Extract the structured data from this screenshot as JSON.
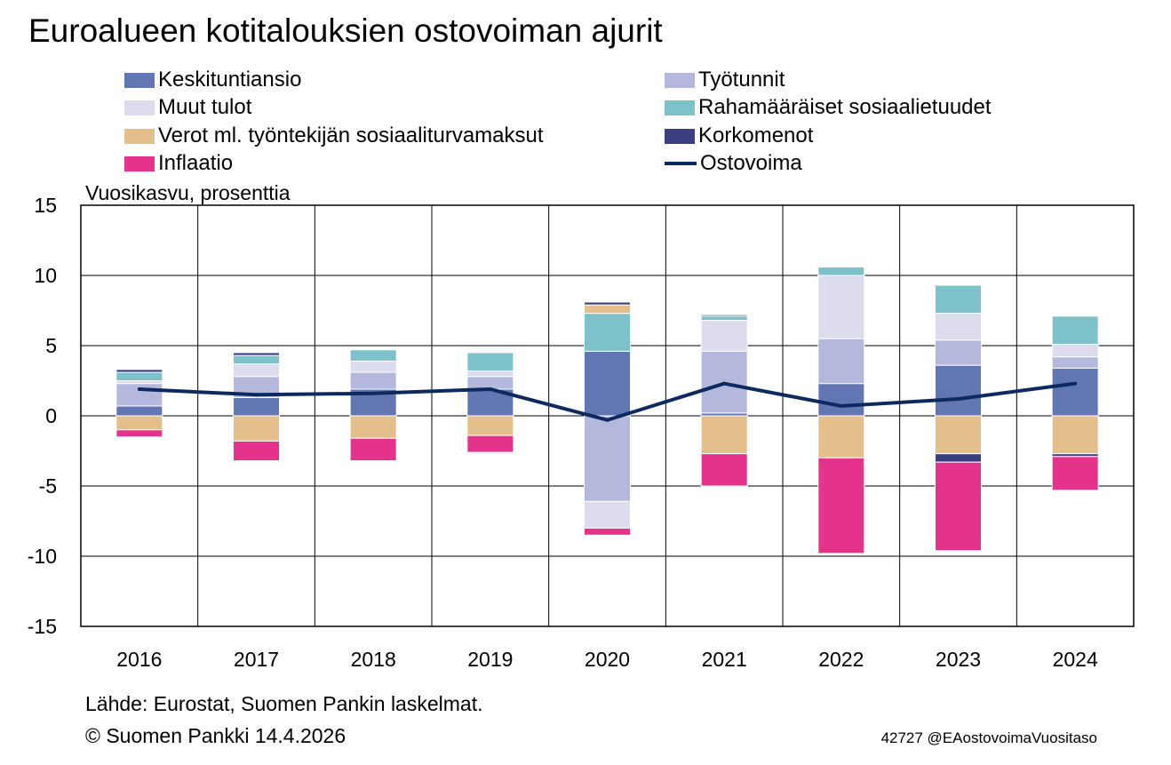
{
  "chart_data": {
    "type": "bar",
    "stacked": true,
    "title": "Euroalueen kotitalouksien ostovoiman ajurit",
    "ylabel": "Vuosikasvu, prosenttia",
    "ylim": [
      -15,
      15
    ],
    "yticks": [
      15,
      10,
      5,
      0,
      -5,
      -10,
      -15
    ],
    "ytick_labels": [
      "15",
      "10",
      "5",
      "0",
      "-5",
      "-10",
      "-15"
    ],
    "grid": true,
    "legend_position": "top",
    "categories": [
      "2016",
      "2017",
      "2018",
      "2019",
      "2020",
      "2021",
      "2022",
      "2023",
      "2024"
    ],
    "series": [
      {
        "name": "Keskituntiansio",
        "color": "#6176b3",
        "values": [
          0.7,
          1.3,
          1.9,
          1.9,
          4.6,
          0.2,
          2.3,
          3.6,
          3.4
        ]
      },
      {
        "name": "Työtunnit",
        "color": "#b4b8dc",
        "values": [
          1.6,
          1.5,
          1.2,
          0.9,
          -6.1,
          4.4,
          3.2,
          1.8,
          0.8
        ]
      },
      {
        "name": "Muut tulot",
        "color": "#dcdcee",
        "values": [
          0.2,
          0.9,
          0.8,
          0.4,
          -1.9,
          2.2,
          4.5,
          1.9,
          0.9
        ]
      },
      {
        "name": "Rahamääräiset sosiaalietuudet",
        "color": "#7dc1cb",
        "values": [
          0.6,
          0.6,
          0.8,
          1.3,
          2.7,
          0.3,
          0.6,
          2.0,
          2.0
        ]
      },
      {
        "name": "Verot ml. työntekijän sosiaaliturvamaksut",
        "color": "#e4bf8b",
        "values": [
          -1.0,
          -1.8,
          -1.6,
          -1.4,
          0.6,
          -2.7,
          -3.0,
          -2.7,
          -2.7
        ]
      },
      {
        "name": "Korkomenot",
        "color": "#3b3f7f",
        "values": [
          0.2,
          0.2,
          0.0,
          0.0,
          0.2,
          0.1,
          0.0,
          -0.6,
          -0.2
        ]
      },
      {
        "name": "Inflaatio",
        "color": "#e5338b",
        "values": [
          -0.5,
          -1.4,
          -1.6,
          -1.2,
          -0.5,
          -2.3,
          -6.8,
          -6.3,
          -2.4
        ]
      }
    ],
    "line_series": {
      "name": "Ostovoima",
      "color": "#0c2a5f",
      "values": [
        1.9,
        1.5,
        1.6,
        1.9,
        -0.3,
        2.3,
        0.7,
        1.2,
        2.3
      ]
    }
  },
  "legend": [
    {
      "label": "Keskituntiansio",
      "color": "#6176b3",
      "kind": "box"
    },
    {
      "label": "Työtunnit",
      "color": "#b4b8dc",
      "kind": "box"
    },
    {
      "label": "Muut tulot",
      "color": "#dcdcee",
      "kind": "box"
    },
    {
      "label": "Rahamääräiset sosiaalietuudet",
      "color": "#7dc1cb",
      "kind": "box"
    },
    {
      "label": "Verot ml. työntekijän sosiaaliturvamaksut",
      "color": "#e4bf8b",
      "kind": "box"
    },
    {
      "label": "Korkomenot",
      "color": "#3b3f7f",
      "kind": "box"
    },
    {
      "label": "Inflaatio",
      "color": "#e5338b",
      "kind": "box"
    },
    {
      "label": "Ostovoima",
      "color": "#0c2a5f",
      "kind": "line"
    }
  ],
  "footer": {
    "source": "Lähde: Eurostat, Suomen Pankin laskelmat.",
    "copyright": "© Suomen Pankki 14.4.2026",
    "chart_id": "42727 @EAostovoimaVuositaso"
  }
}
